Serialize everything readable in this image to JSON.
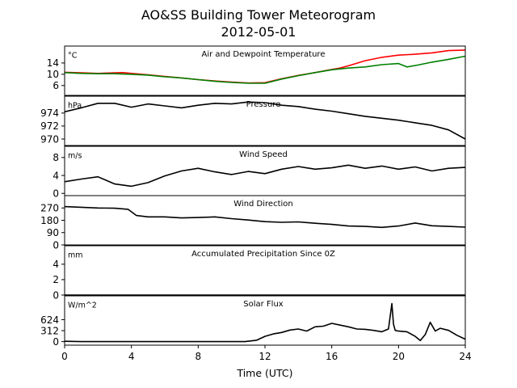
{
  "title": "AO&SS Building Tower Meteorogram",
  "subtitle": "2012-05-01",
  "xlabel": "Time (UTC)",
  "colors": {
    "line": "#000000",
    "air_temperature": "#ff0000",
    "dewpoint": "#008000",
    "axes": "#000000"
  },
  "chart_data": {
    "type": "line",
    "shared_x": {
      "label": "Time (UTC)",
      "xlim": [
        0,
        24
      ],
      "ticks": [
        0,
        4,
        8,
        12,
        16,
        20,
        24
      ],
      "tick_labels": [
        "0",
        "4",
        "8",
        "12",
        "16",
        "20",
        "24"
      ]
    },
    "panels": [
      {
        "id": "temperature",
        "title": "Air and Dewpoint Temperature",
        "unit": "°C",
        "ylim": [
          2.5,
          20
        ],
        "yticks": [
          6,
          10,
          14
        ],
        "ytick_labels": [
          "6",
          "10",
          "14"
        ],
        "series": [
          {
            "color": "#ff0000",
            "x": [
              0,
              1,
              2,
              3,
              3.5,
              4,
              5,
              6,
              7,
              8,
              9,
              10,
              11,
              12,
              13,
              14,
              15,
              16,
              16.5,
              17,
              18,
              19,
              20,
              21,
              22,
              23,
              24
            ],
            "y": [
              10.7,
              10.5,
              10.3,
              10.5,
              10.6,
              10.3,
              9.8,
              9.2,
              8.7,
              8.1,
              7.6,
              7.2,
              6.9,
              7.0,
              8.4,
              9.6,
              10.6,
              11.7,
              12.2,
              13.0,
              14.8,
              16.0,
              16.8,
              17.1,
              17.6,
              18.4,
              18.6
            ]
          },
          {
            "color": "#008000",
            "x": [
              0,
              1,
              2,
              3,
              4,
              5,
              6,
              7,
              8,
              9,
              10,
              11,
              12,
              13,
              14,
              15,
              16,
              17,
              18,
              19,
              20,
              20.5,
              21,
              22,
              23,
              24
            ],
            "y": [
              10.6,
              10.3,
              10.2,
              10.2,
              10.0,
              9.7,
              9.1,
              8.7,
              8.1,
              7.5,
              7.1,
              6.8,
              6.8,
              8.3,
              9.5,
              10.6,
              11.6,
              12.2,
              12.6,
              13.4,
              13.8,
              12.6,
              13.1,
              14.3,
              15.3,
              16.4
            ]
          }
        ]
      },
      {
        "id": "pressure",
        "title": "Pressure",
        "unit": "hPa",
        "ylim": [
          969.0,
          976.6
        ],
        "yticks": [
          970,
          972,
          974
        ],
        "ytick_labels": [
          "970",
          "972",
          "974"
        ],
        "series": [
          {
            "color": "#000000",
            "x": [
              0,
              1,
              2,
              3,
              4,
              5,
              6,
              7,
              8,
              9,
              10,
              11,
              12,
              13,
              14,
              15,
              16,
              17,
              18,
              19,
              20,
              21,
              22,
              23,
              24
            ],
            "y": [
              974.2,
              974.8,
              975.5,
              975.5,
              974.9,
              975.4,
              975.1,
              974.8,
              975.2,
              975.5,
              975.4,
              975.7,
              975.6,
              975.2,
              975.0,
              974.6,
              974.3,
              973.9,
              973.5,
              973.2,
              972.9,
              972.5,
              972.1,
              971.4,
              970.0
            ]
          }
        ]
      },
      {
        "id": "wind_speed",
        "title": "Wind Speed",
        "unit": "m/s",
        "ylim": [
          -0.5,
          10.5
        ],
        "yticks": [
          0,
          4,
          8
        ],
        "ytick_labels": [
          "0",
          "4",
          "8"
        ],
        "series": [
          {
            "color": "#000000",
            "x": [
              0,
              1,
              2,
              3,
              4,
              5,
              6,
              7,
              8,
              9,
              10,
              11,
              12,
              13,
              14,
              15,
              16,
              17,
              18,
              19,
              20,
              21,
              22,
              23,
              24
            ],
            "y": [
              2.6,
              3.2,
              3.7,
              2.1,
              1.6,
              2.4,
              3.9,
              5.0,
              5.6,
              4.8,
              4.2,
              4.9,
              4.4,
              5.4,
              6.0,
              5.4,
              5.7,
              6.3,
              5.6,
              6.1,
              5.4,
              5.9,
              5.0,
              5.6,
              5.8
            ]
          }
        ]
      },
      {
        "id": "wind_direction",
        "title": "Wind Direction",
        "unit": "",
        "ylim": [
          0,
          360
        ],
        "yticks": [
          0,
          90,
          180,
          270
        ],
        "ytick_labels": [
          "0",
          "90",
          "180",
          "270"
        ],
        "series": [
          {
            "color": "#000000",
            "x": [
              0,
              1,
              2,
              3,
              3.8,
              4.3,
              5,
              6,
              7,
              8,
              9,
              10,
              11,
              12,
              13,
              14,
              15,
              16,
              17,
              18,
              19,
              20,
              21,
              22,
              23,
              24
            ],
            "y": [
              280,
              275,
              270,
              268,
              260,
              215,
              205,
              205,
              197,
              200,
              205,
              192,
              182,
              170,
              165,
              168,
              158,
              150,
              138,
              135,
              128,
              138,
              160,
              140,
              135,
              130
            ]
          }
        ]
      },
      {
        "id": "precipitation",
        "title": "Accumulated Precipitation Since 0Z",
        "unit": "mm",
        "ylim": [
          0,
          6.4
        ],
        "yticks": [
          0,
          2,
          4
        ],
        "ytick_labels": [
          "0",
          "2",
          "4"
        ],
        "series": [
          {
            "color": "#000000",
            "x": [
              0,
              24
            ],
            "y": [
              0,
              0
            ]
          }
        ]
      },
      {
        "id": "solar_flux",
        "title": "Solar Flux",
        "unit": "W/m^2",
        "ylim": [
          -100,
          1300
        ],
        "yticks": [
          0,
          312,
          624
        ],
        "ytick_labels": [
          "0",
          "312",
          "624"
        ],
        "series": [
          {
            "color": "#000000",
            "x": [
              0,
              1,
              2,
              3,
              4,
              5,
              6,
              7,
              8,
              9,
              10,
              10.8,
              11.5,
              12,
              12.5,
              13,
              13.5,
              14,
              14.5,
              15,
              15.5,
              16,
              16.5,
              17,
              17.5,
              18,
              18.5,
              19,
              19.4,
              19.6,
              19.7,
              19.8,
              20,
              20.5,
              21,
              21.3,
              21.6,
              21.9,
              22.2,
              22.5,
              23,
              23.5,
              24
            ],
            "y": [
              10,
              0,
              0,
              0,
              0,
              0,
              0,
              0,
              0,
              0,
              0,
              0,
              40,
              150,
              220,
              260,
              330,
              360,
              300,
              420,
              440,
              520,
              470,
              420,
              360,
              350,
              320,
              280,
              360,
              1080,
              500,
              320,
              300,
              280,
              150,
              30,
              200,
              550,
              300,
              380,
              320,
              180,
              70
            ]
          }
        ]
      }
    ]
  }
}
